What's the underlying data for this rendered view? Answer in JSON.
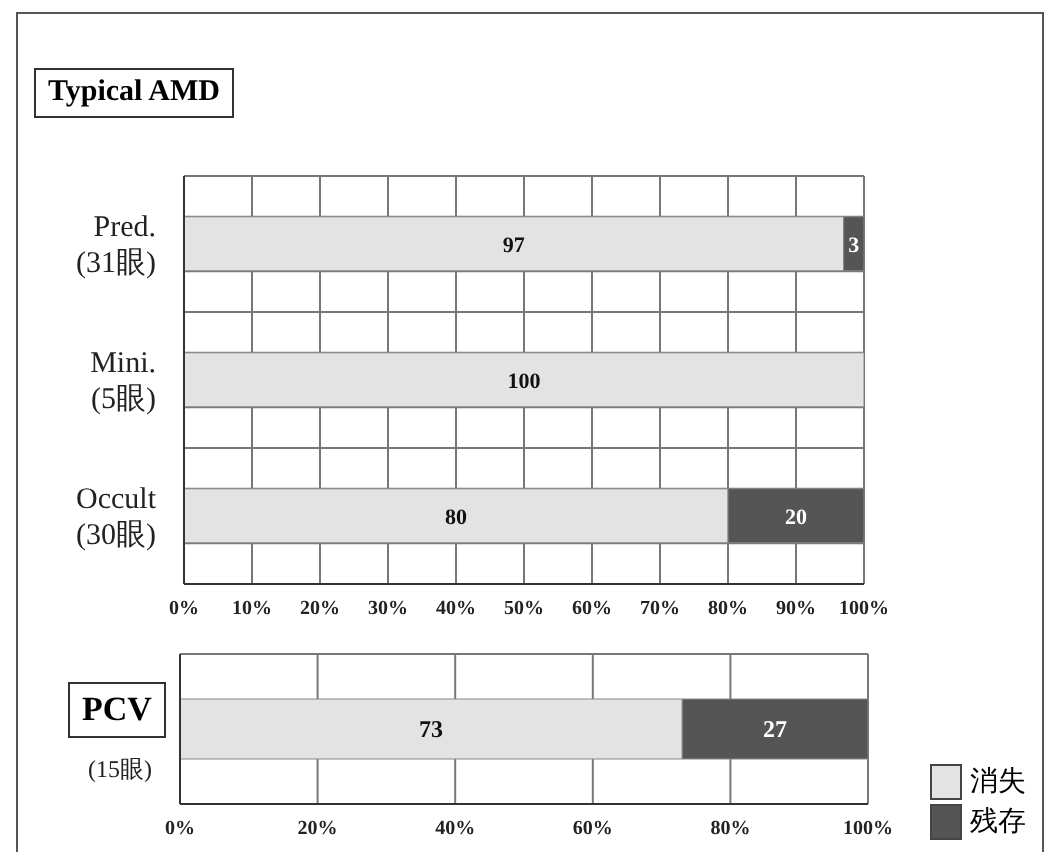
{
  "chart_data": [
    {
      "type": "bar",
      "title": "Typical AMD",
      "orientation": "horizontal",
      "stacked": true,
      "categories": [
        "Pred.\n(31眼)",
        "Mini.\n(5眼)",
        "Occult\n(30眼)"
      ],
      "series": [
        {
          "color": "#e3e3e3",
          "values": [
            97,
            100,
            80
          ],
          "value_labels": [
            "97",
            "100",
            "80"
          ]
        },
        {
          "color": "#555555",
          "values": [
            3,
            0,
            20
          ],
          "value_labels": [
            "3",
            null,
            "20"
          ]
        }
      ],
      "xlim": [
        0,
        100
      ],
      "xticks": [
        {
          "value": 0,
          "label": "0%"
        },
        {
          "value": 10,
          "label": "10%"
        },
        {
          "value": 20,
          "label": "20%"
        },
        {
          "value": 30,
          "label": "30%"
        },
        {
          "value": 40,
          "label": "40%"
        },
        {
          "value": 50,
          "label": "50%"
        },
        {
          "value": 60,
          "label": "60%"
        },
        {
          "value": 70,
          "label": "70%"
        },
        {
          "value": 80,
          "label": "80%"
        },
        {
          "value": 90,
          "label": "90%"
        },
        {
          "value": 100,
          "label": "100%"
        }
      ],
      "grid": true,
      "legend": false
    },
    {
      "type": "bar",
      "title": "PCV",
      "orientation": "horizontal",
      "stacked": true,
      "categories": [
        "(15眼)"
      ],
      "series": [
        {
          "name": "消失",
          "color": "#e3e3e3",
          "values": [
            73
          ],
          "value_labels": [
            "73"
          ]
        },
        {
          "name": "残存",
          "color": "#555555",
          "values": [
            27
          ],
          "value_labels": [
            "27"
          ]
        }
      ],
      "xlim": [
        0,
        100
      ],
      "xticks": [
        {
          "value": 0,
          "label": "0%"
        },
        {
          "value": 20,
          "label": "20%"
        },
        {
          "value": 40,
          "label": "40%"
        },
        {
          "value": 60,
          "label": "60%"
        },
        {
          "value": 80,
          "label": "80%"
        },
        {
          "value": 100,
          "label": "100%"
        }
      ],
      "grid": "x",
      "legend": "bottom right"
    }
  ]
}
